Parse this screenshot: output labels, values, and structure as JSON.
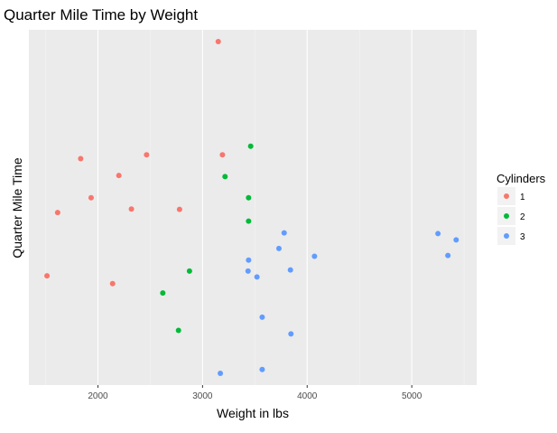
{
  "chart_data": {
    "type": "scatter",
    "title": "Quarter Mile Time by Weight",
    "xlabel": "Weight in lbs",
    "ylabel": "Quarter Mile Time",
    "xlim": [
      1340,
      5620
    ],
    "ylim": [
      14.1,
      23.2
    ],
    "x_ticks": [
      2000,
      3000,
      4000,
      5000
    ],
    "x_tick_labels": [
      "2000",
      "3000",
      "4000",
      "5000"
    ],
    "y_ticks": [],
    "grid": true,
    "legend": {
      "title": "Cylinders",
      "position": "right",
      "entries": [
        {
          "label": "1",
          "color": "#F8766D"
        },
        {
          "label": "2",
          "color": "#00BA38"
        },
        {
          "label": "3",
          "color": "#619CFF"
        }
      ]
    },
    "series": [
      {
        "name": "1",
        "color": "#F8766D",
        "points": [
          {
            "x": 3150,
            "y": 22.9
          },
          {
            "x": 1835,
            "y": 19.9
          },
          {
            "x": 2465,
            "y": 20.0
          },
          {
            "x": 3190,
            "y": 20.0
          },
          {
            "x": 2200,
            "y": 19.47
          },
          {
            "x": 1935,
            "y": 18.9
          },
          {
            "x": 1615,
            "y": 18.52
          },
          {
            "x": 2320,
            "y": 18.61
          },
          {
            "x": 2780,
            "y": 18.6
          },
          {
            "x": 1513,
            "y": 16.9
          },
          {
            "x": 2140,
            "y": 16.7
          }
        ]
      },
      {
        "name": "2",
        "color": "#00BA38",
        "points": [
          {
            "x": 3460,
            "y": 20.22
          },
          {
            "x": 3215,
            "y": 19.44
          },
          {
            "x": 3440,
            "y": 18.9
          },
          {
            "x": 3440,
            "y": 18.3
          },
          {
            "x": 2875,
            "y": 17.02
          },
          {
            "x": 2620,
            "y": 16.46
          },
          {
            "x": 2770,
            "y": 15.5
          }
        ]
      },
      {
        "name": "3",
        "color": "#619CFF",
        "points": [
          {
            "x": 3780,
            "y": 18.0
          },
          {
            "x": 3730,
            "y": 17.6
          },
          {
            "x": 4070,
            "y": 17.4
          },
          {
            "x": 3440,
            "y": 17.3
          },
          {
            "x": 3840,
            "y": 17.05
          },
          {
            "x": 3435,
            "y": 17.02
          },
          {
            "x": 3520,
            "y": 16.87
          },
          {
            "x": 3570,
            "y": 15.84
          },
          {
            "x": 3845,
            "y": 15.41
          },
          {
            "x": 3570,
            "y": 14.5
          },
          {
            "x": 3170,
            "y": 14.4
          },
          {
            "x": 5250,
            "y": 17.98
          },
          {
            "x": 5424,
            "y": 17.82
          },
          {
            "x": 5345,
            "y": 17.42
          }
        ]
      }
    ]
  }
}
